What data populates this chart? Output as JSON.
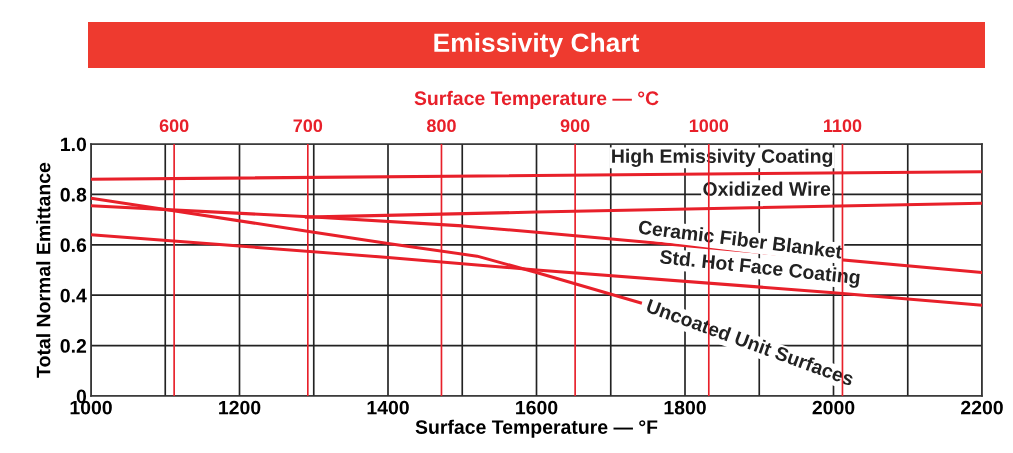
{
  "chart_data": {
    "type": "line",
    "title": "Emissivity Chart",
    "xlabel": "Surface Temperature — °F",
    "ylabel": "Total Normal Emittance",
    "x2label": "Surface Temperature — °C",
    "xlim": [
      1000,
      2200
    ],
    "xticks": [
      1000,
      {
        "value": 1100,
        "label": null
      },
      1200,
      {
        "value": 1300,
        "label": null
      },
      1400,
      {
        "value": 1500,
        "label": null
      },
      1600,
      {
        "value": 1700,
        "label": null
      },
      1800,
      {
        "value": 1900,
        "label": null
      },
      2000,
      {
        "value": 2100,
        "label": null
      },
      2200
    ],
    "x2lim": [
      537.8,
      1204.4
    ],
    "x2ticks": [
      600,
      700,
      800,
      900,
      1000,
      1100
    ],
    "ylim": [
      0,
      1
    ],
    "yticks": [
      0,
      0.2,
      0.4,
      0.6,
      0.8,
      {
        "value": 1,
        "label": "1.0"
      }
    ],
    "grid": true,
    "legend": false,
    "marker": "none",
    "line_style": "solid",
    "series": [
      {
        "name": "High Emissivity Coating",
        "color": "#e8202a",
        "x": [
          1000,
          2200
        ],
        "values": [
          0.86,
          0.89
        ]
      },
      {
        "name": "Oxidized Wire",
        "color": "#e8202a",
        "x": [
          1290,
          1600,
          2200
        ],
        "values": [
          0.71,
          0.73,
          0.765
        ]
      },
      {
        "name": "Ceramic Fiber Blanket",
        "color": "#e8202a",
        "x": [
          1000,
          1300,
          1500,
          1600,
          2200
        ],
        "values": [
          0.755,
          0.71,
          0.675,
          0.65,
          0.49
        ]
      },
      {
        "name": "Std. Hot Face Coating",
        "color": "#e8202a",
        "x": [
          1000,
          1200,
          1400,
          1600,
          2000,
          2200
        ],
        "values": [
          0.64,
          0.595,
          0.55,
          0.5,
          0.41,
          0.36
        ]
      },
      {
        "name": "Uncoated Unit Surfaces",
        "color": "#e8202a",
        "x": [
          1000,
          1100,
          1300,
          1400,
          1520,
          1600,
          1740
        ],
        "values": [
          0.785,
          0.74,
          0.65,
          0.605,
          0.555,
          0.49,
          0.37
        ]
      }
    ]
  }
}
